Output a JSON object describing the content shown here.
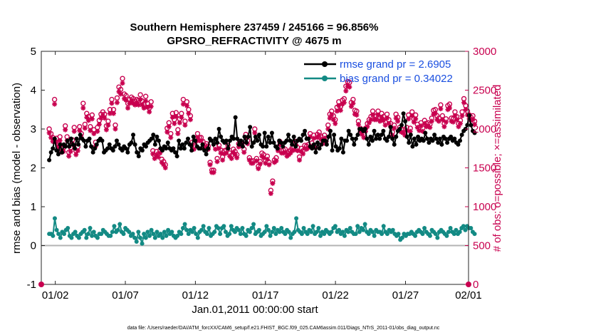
{
  "chart_data": {
    "type": "line",
    "title_line1": "Southern Hemisphere 237459 / 245166 = 96.856%",
    "title_line2": "GPSRO_REFRACTIVITY @ 4675 m",
    "ylabel_left": "rmse and bias (model - observation)",
    "ylabel_right": "# of obs: o=possible; ×=assimilated",
    "xlabel": "Jan.01,2011 00:00:00 start",
    "footnote": "data file: /Users/raeder/DAI/ATM_forcXX/CAM6_setup/f.e21.FHIST_BGC.f09_025.CAM6assim.011/Diags_NTrS_2011-01/obs_diag_output.nc",
    "ylim_left": [
      -1,
      5
    ],
    "ylim_right": [
      0,
      3000
    ],
    "yticks_left": [
      "-1",
      "0",
      "1",
      "2",
      "3",
      "4",
      "5"
    ],
    "yticks_right": [
      "0",
      "500",
      "1000",
      "1500",
      "2000",
      "2500",
      "3000"
    ],
    "x_range_days": [
      0.5,
      31
    ],
    "xticks": [
      {
        "label": "01/02",
        "day": 1.5
      },
      {
        "label": "01/07",
        "day": 6.5
      },
      {
        "label": "01/12",
        "day": 11.5
      },
      {
        "label": "01/17",
        "day": 16.5
      },
      {
        "label": "01/22",
        "day": 21.5
      },
      {
        "label": "01/27",
        "day": 26.5
      },
      {
        "label": "02/01",
        "day": 31.5
      }
    ],
    "legend": {
      "placement": "top-right",
      "rmse_label": "rmse grand pr = 2.6905",
      "bias_label": "bias grand pr = 0.34022"
    },
    "colors": {
      "rmse": "#000000",
      "bias": "#138a84",
      "obs": "#c8004f",
      "zero_line": "#b4b4b4",
      "legend_text": "#1a4fe0"
    },
    "series": [
      {
        "name": "rmse grand pr = 2.6905",
        "axis": "left",
        "values": [
          2.2,
          2.4,
          2.5,
          2.75,
          2.45,
          2.35,
          2.6,
          2.4,
          2.6,
          2.55,
          2.7,
          2.55,
          2.75,
          2.6,
          2.5,
          2.75,
          2.6,
          2.85,
          2.75,
          2.7,
          2.55,
          2.7,
          2.75,
          2.55,
          2.4,
          2.5,
          2.6,
          2.7,
          2.75,
          2.7,
          2.4,
          2.45,
          2.5,
          2.6,
          2.5,
          2.45,
          2.55,
          2.7,
          2.6,
          2.5,
          2.45,
          2.55,
          2.5,
          2.4,
          2.6,
          2.65,
          2.85,
          2.6,
          2.4,
          2.3,
          2.5,
          2.45,
          2.6,
          2.55,
          2.65,
          2.7,
          2.75,
          2.85,
          2.6,
          2.8,
          2.7,
          2.5,
          2.45,
          2.55,
          2.5,
          2.65,
          2.5,
          2.45,
          2.5,
          2.4,
          2.3,
          2.7,
          2.5,
          2.6,
          2.5,
          2.65,
          2.75,
          2.6,
          2.45,
          2.8,
          2.7,
          2.55,
          2.5,
          2.5,
          2.6,
          2.45,
          2.35,
          2.5,
          2.75,
          2.7,
          2.6,
          2.75,
          2.65,
          3.0,
          2.8,
          2.7,
          2.65,
          2.7,
          2.5,
          2.7,
          2.8,
          2.75,
          3.3,
          2.75,
          2.6,
          2.7,
          2.55,
          2.8,
          2.65,
          2.8,
          3.05,
          2.55,
          2.65,
          2.8,
          2.7,
          2.85,
          2.6,
          2.55,
          2.9,
          2.55,
          2.8,
          2.65,
          2.9,
          2.65,
          2.55,
          2.5,
          2.7,
          2.65,
          2.55,
          2.65,
          2.7,
          2.85,
          2.7,
          2.6,
          2.8,
          2.55,
          2.7,
          2.75,
          2.7,
          2.85,
          2.95,
          2.75,
          2.75,
          2.55,
          2.5,
          2.6,
          2.4,
          2.65,
          2.5,
          2.6,
          2.7,
          2.7,
          2.6,
          2.8,
          2.95,
          2.45,
          2.85,
          2.55,
          2.45,
          2.5,
          2.75,
          2.4,
          2.7,
          2.7,
          2.95,
          2.85,
          2.75,
          2.6,
          2.75,
          2.85,
          3.0,
          3.0,
          2.95,
          3.0,
          2.75,
          2.6,
          2.8,
          2.7,
          2.95,
          2.75,
          2.85,
          2.75,
          2.85,
          2.95,
          2.75,
          2.7,
          2.8,
          3.05,
          2.75,
          2.6,
          2.8,
          2.95,
          3.0,
          3.1,
          3.4,
          3.2,
          2.8,
          2.65,
          2.85,
          2.55,
          2.75,
          2.6,
          2.8,
          2.7,
          2.75,
          2.7,
          2.9,
          2.75,
          2.65,
          2.75,
          2.7,
          2.85,
          2.75,
          2.65,
          2.75,
          2.6,
          2.8,
          2.75,
          2.65,
          2.75,
          2.8,
          2.7,
          2.75,
          2.65,
          2.6,
          2.7,
          2.85,
          2.95,
          3.0,
          3.1,
          3.35,
          3.1,
          2.95,
          2.9
        ]
      },
      {
        "name": "bias grand pr = 0.34022",
        "axis": "left",
        "values": [
          0.3,
          0.3,
          0.25,
          0.7,
          0.4,
          0.3,
          0.2,
          0.35,
          0.3,
          0.4,
          0.45,
          0.25,
          0.2,
          0.3,
          0.35,
          0.25,
          0.2,
          0.3,
          0.35,
          0.4,
          0.2,
          0.3,
          0.45,
          0.25,
          0.35,
          0.25,
          0.2,
          0.3,
          0.3,
          0.4,
          0.35,
          0.3,
          0.25,
          0.25,
          0.35,
          0.5,
          0.35,
          0.4,
          0.55,
          0.35,
          0.3,
          0.45,
          0.4,
          0.35,
          0.25,
          0.3,
          0.2,
          0.1,
          0.35,
          0.2,
          0.05,
          0.3,
          0.2,
          0.35,
          0.25,
          0.4,
          0.3,
          0.2,
          0.35,
          0.25,
          0.3,
          0.2,
          0.35,
          0.25,
          0.4,
          0.3,
          0.35,
          0.25,
          0.2,
          0.25,
          0.35,
          0.3,
          0.45,
          0.55,
          0.4,
          0.3,
          0.4,
          0.35,
          0.45,
          0.3,
          0.2,
          0.35,
          0.4,
          0.5,
          0.35,
          0.3,
          0.45,
          0.25,
          0.3,
          0.35,
          0.5,
          0.45,
          0.3,
          0.45,
          0.5,
          0.35,
          0.25,
          0.3,
          0.5,
          0.4,
          0.35,
          0.45,
          0.4,
          0.3,
          0.45,
          0.3,
          0.25,
          0.4,
          0.35,
          0.45,
          0.55,
          0.3,
          0.35,
          0.4,
          0.25,
          0.3,
          0.35,
          0.5,
          0.4,
          0.25,
          0.35,
          0.45,
          0.3,
          0.4,
          0.35,
          0.45,
          0.35,
          0.3,
          0.4,
          0.35,
          0.2,
          0.3,
          0.35,
          0.7,
          0.4,
          0.35,
          0.3,
          0.45,
          0.35,
          0.3,
          0.4,
          0.35,
          0.5,
          0.3,
          0.35,
          0.45,
          0.25,
          0.35,
          0.3,
          0.4,
          0.35,
          0.3,
          0.35,
          0.45,
          0.5,
          0.35,
          0.4,
          0.3,
          0.35,
          0.25,
          0.4,
          0.35,
          0.45,
          0.35,
          0.3,
          0.3,
          0.5,
          0.35,
          0.45,
          0.4,
          0.55,
          0.35,
          0.3,
          0.4,
          0.35,
          0.25,
          0.4,
          0.35,
          0.35,
          0.3,
          0.5,
          0.35,
          0.3,
          0.4,
          0.35,
          0.4,
          0.3,
          0.25,
          0.3,
          0.15,
          0.2,
          0.3,
          0.25,
          0.3,
          0.3,
          0.35,
          0.3,
          0.25,
          0.35,
          0.4,
          0.35,
          0.3,
          0.45,
          0.35,
          0.3,
          0.25,
          0.4,
          0.35,
          0.3,
          0.2,
          0.35,
          0.4,
          0.35,
          0.3,
          0.25,
          0.35,
          0.45,
          0.35,
          0.3,
          0.4,
          0.3,
          0.35,
          0.45,
          0.5,
          0.4,
          0.5,
          0.45,
          0.45,
          0.35,
          0.3
        ]
      },
      {
        "name": "possible",
        "axis": "right",
        "values": [
          2000,
          1940,
          1890,
          2380,
          1880,
          1820,
          1900,
          1750,
          1760,
          2040,
          1900,
          1700,
          1760,
          1860,
          2020,
          1720,
          1770,
          2030,
          1940,
          2330,
          2060,
          2200,
          2160,
          2030,
          2180,
          1990,
          1830,
          2020,
          2110,
          2190,
          2220,
          2190,
          2040,
          2100,
          2250,
          2380,
          2250,
          2050,
          2400,
          2540,
          2510,
          2650,
          2450,
          2430,
          2330,
          2380,
          2410,
          2390,
          2360,
          2380,
          2370,
          2440,
          2360,
          2320,
          2420,
          2330,
          2270,
          2350,
          1720,
          1660,
          1710,
          1680,
          1730,
          1610,
          1580,
          1540,
          2010,
          2080,
          1940,
          2200,
          2120,
          2210,
          1990,
          2130,
          2200,
          2380,
          2100,
          2350,
          2250,
          2170,
          1830,
          1780,
          1880,
          1940,
          1890,
          1890,
          1840,
          1790,
          1810,
          1780,
          1570,
          1470,
          1470,
          1780,
          1620,
          1790,
          1730,
          1640,
          1720,
          1730,
          1790,
          1690,
          1660,
          1740,
          1710,
          1670,
          1810,
          1830,
          1820,
          1740,
          1930,
          1850,
          1630,
          1590,
          1590,
          2000,
          1620,
          1520,
          1580,
          1690,
          1670,
          1590,
          1650,
          1570,
          1210,
          1330,
          1600,
          1630,
          1760,
          1840,
          1720,
          1730,
          1740,
          1690,
          1710,
          1730,
          1760,
          1770,
          1840,
          1760,
          1640,
          1750,
          1720,
          1790,
          1780,
          1800,
          1940,
          1820,
          1920,
          1790,
          1930,
          1960,
          1910,
          1850,
          1920,
          1880,
          2050,
          2190,
          2230,
          2170,
          2120,
          2280,
          2350,
          2290,
          2370,
          2390,
          2550,
          2610,
          2600,
          2340,
          2380,
          2240,
          2230,
          2100,
          2010,
          1970,
          1930,
          2010,
          2070,
          2120,
          2160,
          2230,
          2170,
          2170,
          2230,
          2150,
          2200,
          2160,
          2090,
          2190,
          2120,
          2070,
          1960,
          2050,
          2190,
          2150,
          2020,
          2000,
          1990,
          1960,
          2020,
          2180,
          2010,
          2220,
          2130,
          2180,
          2060,
          2020,
          2080,
          2010,
          2110,
          2070,
          2080,
          2060,
          2140,
          2240,
          2250,
          2170,
          2140,
          2310,
          2170,
          2070,
          2130,
          2300,
          2320,
          2140,
          2130,
          2220,
          2160,
          2070,
          2110,
          2220,
          2390,
          2300,
          2230,
          2180,
          2150,
          2170,
          2100
        ]
      },
      {
        "name": "assimilated",
        "axis": "right",
        "values": [
          1950,
          1890,
          1840,
          2320,
          1830,
          1770,
          1850,
          1700,
          1710,
          1990,
          1850,
          1650,
          1710,
          1810,
          1970,
          1670,
          1720,
          1980,
          1890,
          2270,
          2010,
          2150,
          2110,
          1980,
          2130,
          1940,
          1780,
          1970,
          2060,
          2140,
          2170,
          2140,
          1990,
          2050,
          2200,
          2330,
          2200,
          2000,
          2340,
          2480,
          2450,
          2590,
          2390,
          2370,
          2270,
          2330,
          2360,
          2330,
          2310,
          2330,
          2310,
          2380,
          2310,
          2270,
          2360,
          2280,
          2220,
          2290,
          1680,
          1620,
          1660,
          1640,
          1690,
          1570,
          1540,
          1500,
          1960,
          2030,
          1890,
          2150,
          2070,
          2160,
          1940,
          2080,
          2150,
          2320,
          2050,
          2300,
          2200,
          2120,
          1790,
          1740,
          1840,
          1890,
          1850,
          1850,
          1800,
          1750,
          1770,
          1740,
          1540,
          1440,
          1440,
          1740,
          1580,
          1750,
          1690,
          1600,
          1680,
          1690,
          1750,
          1650,
          1620,
          1700,
          1670,
          1630,
          1770,
          1790,
          1780,
          1700,
          1890,
          1810,
          1600,
          1560,
          1560,
          1950,
          1590,
          1490,
          1550,
          1650,
          1630,
          1560,
          1610,
          1540,
          1170,
          1300,
          1570,
          1590,
          1720,
          1800,
          1690,
          1690,
          1700,
          1650,
          1670,
          1690,
          1720,
          1730,
          1800,
          1720,
          1600,
          1710,
          1680,
          1750,
          1740,
          1760,
          1900,
          1780,
          1880,
          1760,
          1890,
          1920,
          1870,
          1810,
          1880,
          1840,
          2000,
          2140,
          2180,
          2120,
          2070,
          2230,
          2300,
          2240,
          2320,
          2340,
          2490,
          2550,
          2540,
          2290,
          2330,
          2190,
          2180,
          2060,
          1970,
          1930,
          1890,
          1970,
          2030,
          2080,
          2120,
          2180,
          2120,
          2120,
          2180,
          2100,
          2150,
          2110,
          2050,
          2140,
          2070,
          2030,
          1920,
          2010,
          2140,
          2100,
          1980,
          1960,
          1950,
          1920,
          1980,
          2130,
          1970,
          2170,
          2090,
          2130,
          2020,
          1980,
          2040,
          1970,
          2070,
          2030,
          2040,
          2020,
          2100,
          2190,
          2200,
          2120,
          2100,
          2260,
          2120,
          2030,
          2090,
          2250,
          2270,
          2100,
          2090,
          2170,
          2120,
          2030,
          2070,
          2170,
          2340,
          2250,
          2180,
          2130,
          2110,
          2120,
          2060
        ]
      }
    ]
  }
}
